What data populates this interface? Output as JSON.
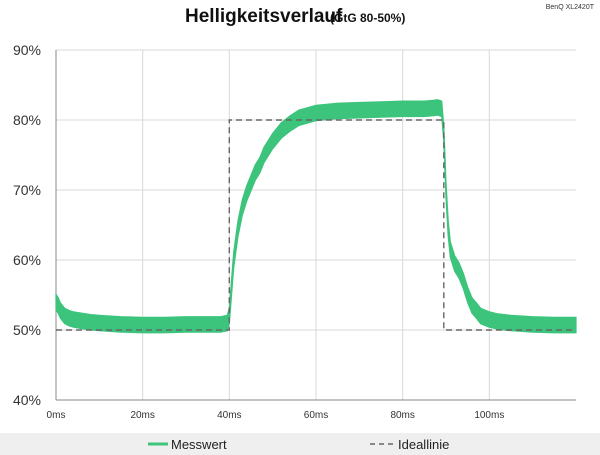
{
  "title": "Helligkeitsverlauf",
  "subtitle": "(GtG 80-50%)",
  "watermark": "BenQ XL2420T",
  "colors": {
    "measured": "#3cc47c",
    "ideal": "#666666",
    "grid": "#d9d9d9",
    "axis": "#888888",
    "legend_band": "#efefef"
  },
  "chart_data": {
    "type": "line",
    "title": "Helligkeitsverlauf",
    "subtitle": "(GtG 80-50%)",
    "xlabel": "",
    "ylabel": "",
    "xlim": [
      0,
      120
    ],
    "ylim": [
      40,
      90
    ],
    "x_ticks": [
      "0ms",
      "20ms",
      "40ms",
      "60ms",
      "80ms",
      "100ms"
    ],
    "x_tick_values": [
      0,
      20,
      40,
      60,
      80,
      100
    ],
    "y_ticks": [
      "40%",
      "50%",
      "60%",
      "70%",
      "80%",
      "90%"
    ],
    "y_tick_values": [
      40,
      50,
      60,
      70,
      80,
      90
    ],
    "grid": true,
    "legend_position": "bottom",
    "series": [
      {
        "name": "Messwert",
        "style": "solid-band",
        "band_width": 2.2,
        "x": [
          0,
          0.5,
          1,
          2,
          3,
          4,
          6,
          8,
          10,
          15,
          20,
          25,
          30,
          35,
          38,
          39.5,
          40,
          40.5,
          41,
          42,
          43,
          44,
          45,
          46,
          47,
          48,
          50,
          52,
          54,
          56,
          60,
          65,
          70,
          75,
          80,
          85,
          87,
          88,
          89,
          89.5,
          90,
          90.5,
          91,
          92,
          93,
          94,
          95,
          96,
          97,
          98,
          100,
          102,
          105,
          110,
          115,
          120
        ],
        "values": [
          54.0,
          53.5,
          52.8,
          52.0,
          51.7,
          51.5,
          51.3,
          51.1,
          51.0,
          50.8,
          50.7,
          50.7,
          50.8,
          50.8,
          50.8,
          51.0,
          52.0,
          56.0,
          60.0,
          64.5,
          67.5,
          69.5,
          71.0,
          72.5,
          73.5,
          75.0,
          77.0,
          78.5,
          79.5,
          80.3,
          81.0,
          81.3,
          81.4,
          81.5,
          81.6,
          81.6,
          81.7,
          81.8,
          81.6,
          78.0,
          70.0,
          64.5,
          61.5,
          59.5,
          58.5,
          57.0,
          55.0,
          53.5,
          52.8,
          52.0,
          51.5,
          51.2,
          51.0,
          50.8,
          50.7,
          50.7
        ]
      },
      {
        "name": "Ideallinie",
        "style": "dashed",
        "x": [
          0,
          40,
          40,
          89.5,
          89.5,
          120
        ],
        "values": [
          50,
          50,
          80,
          80,
          50,
          50
        ]
      }
    ]
  },
  "legend": {
    "measured_label": "Messwert",
    "ideal_label": "Ideallinie"
  }
}
